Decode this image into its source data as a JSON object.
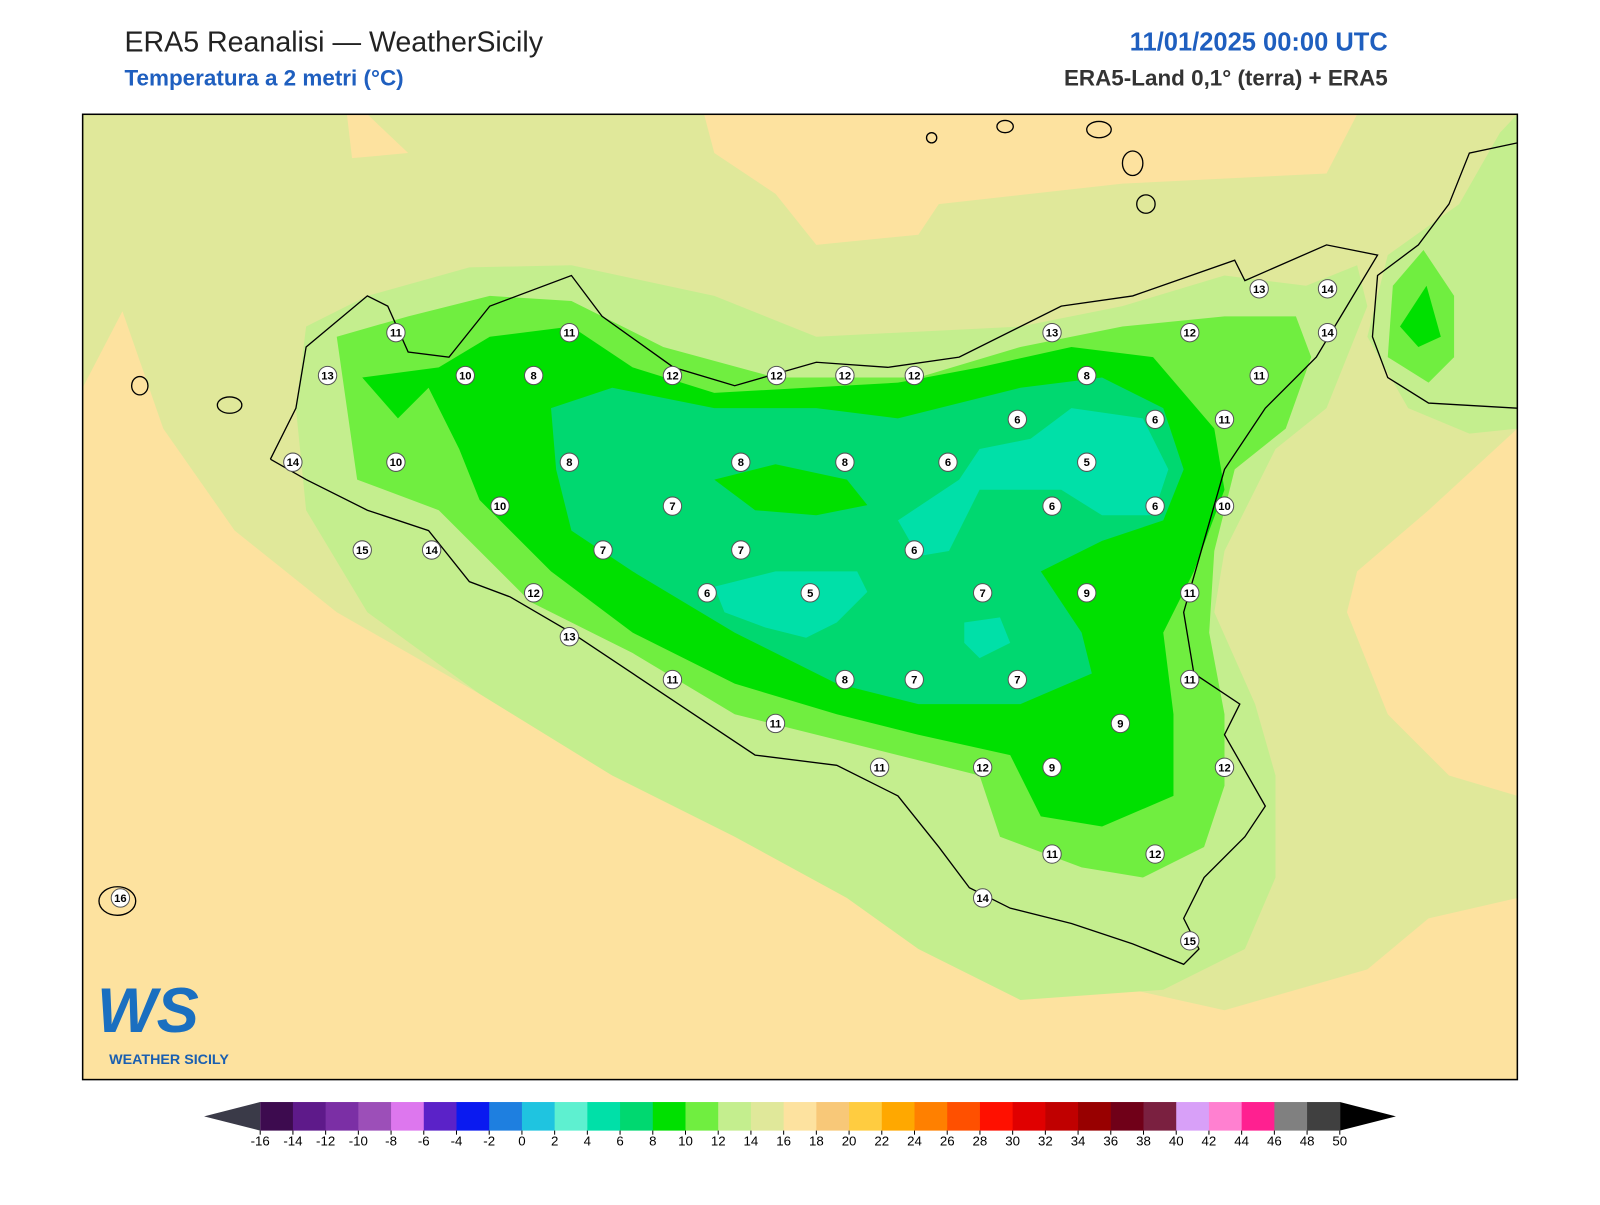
{
  "header": {
    "title": "ERA5 Reanalisi — WeatherSicily",
    "subtitle": "Temperatura a 2 metri (°C)",
    "datetime": "11/01/2025 00:00 UTC",
    "source": "ERA5-Land 0,1° (terra) + ERA5"
  },
  "stations": [
    11,
    11,
    13,
    10,
    8,
    12,
    12,
    12,
    12,
    13,
    12,
    13,
    14,
    14,
    8,
    11,
    6,
    6,
    11,
    14,
    10,
    8,
    8,
    8,
    6,
    5,
    10,
    7,
    6,
    6,
    10,
    15,
    14,
    7,
    7,
    6,
    12,
    6,
    5,
    7,
    9,
    11,
    13,
    11,
    8,
    7,
    7,
    11,
    11,
    9,
    11,
    12,
    9,
    12,
    11,
    12,
    14,
    15,
    16
  ],
  "colorbar": {
    "ticks": [
      -16,
      -14,
      -12,
      -10,
      -8,
      -6,
      -4,
      -2,
      0,
      2,
      4,
      6,
      8,
      10,
      12,
      14,
      16,
      18,
      20,
      22,
      24,
      26,
      28,
      30,
      32,
      34,
      36,
      38,
      40,
      42,
      44,
      46,
      48,
      50
    ],
    "colors": [
      "#3d0b4f",
      "#5e1a8a",
      "#7b2fa5",
      "#9c4fb8",
      "#dd77ee",
      "#5b22c8",
      "#0a1af0",
      "#1e7fe0",
      "#1fc4e0",
      "#5ef0d0",
      "#00e0a8",
      "#00d870",
      "#00e000",
      "#70ee40",
      "#c4ee8e",
      "#e0e89a",
      "#fde29f",
      "#f8c878",
      "#ffcc40",
      "#ffa800",
      "#ff8000",
      "#ff5000",
      "#ff1000",
      "#e00000",
      "#c00000",
      "#980000",
      "#700018",
      "#7a2040",
      "#d8a0f8",
      "#ff80d0",
      "#ff2090",
      "#808080",
      "#404040"
    ],
    "extend_colors": [
      "#3a3a48",
      "#000000"
    ]
  },
  "logo": {
    "mark": "WS",
    "name": "WEATHER SICILY"
  }
}
